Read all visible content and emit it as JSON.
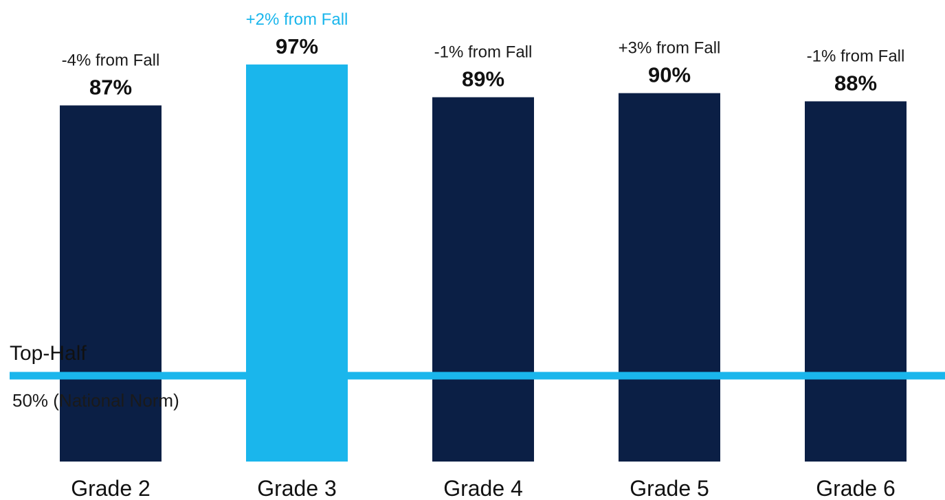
{
  "chart_data": {
    "type": "bar",
    "categories": [
      "Grade 2",
      "Grade 3",
      "Grade 4",
      "Grade 5",
      "Grade 6"
    ],
    "values": [
      87,
      97,
      89,
      90,
      88
    ],
    "value_labels": [
      "87%",
      "97%",
      "89%",
      "90%",
      "88%"
    ],
    "change_labels": [
      "-4% from Fall",
      "+2% from Fall",
      "-1% from Fall",
      "+3% from Fall",
      "-1% from Fall"
    ],
    "highlight_index": 1,
    "reference_line": {
      "value": 50,
      "label_above": "Top-Half",
      "label_below": "50% (National Norm)"
    },
    "ylim": [
      0,
      100
    ],
    "grid": false,
    "colors": {
      "bar": "#0b1f45",
      "highlight": "#1ab6ec",
      "reference_line": "#1ab6ec"
    }
  }
}
